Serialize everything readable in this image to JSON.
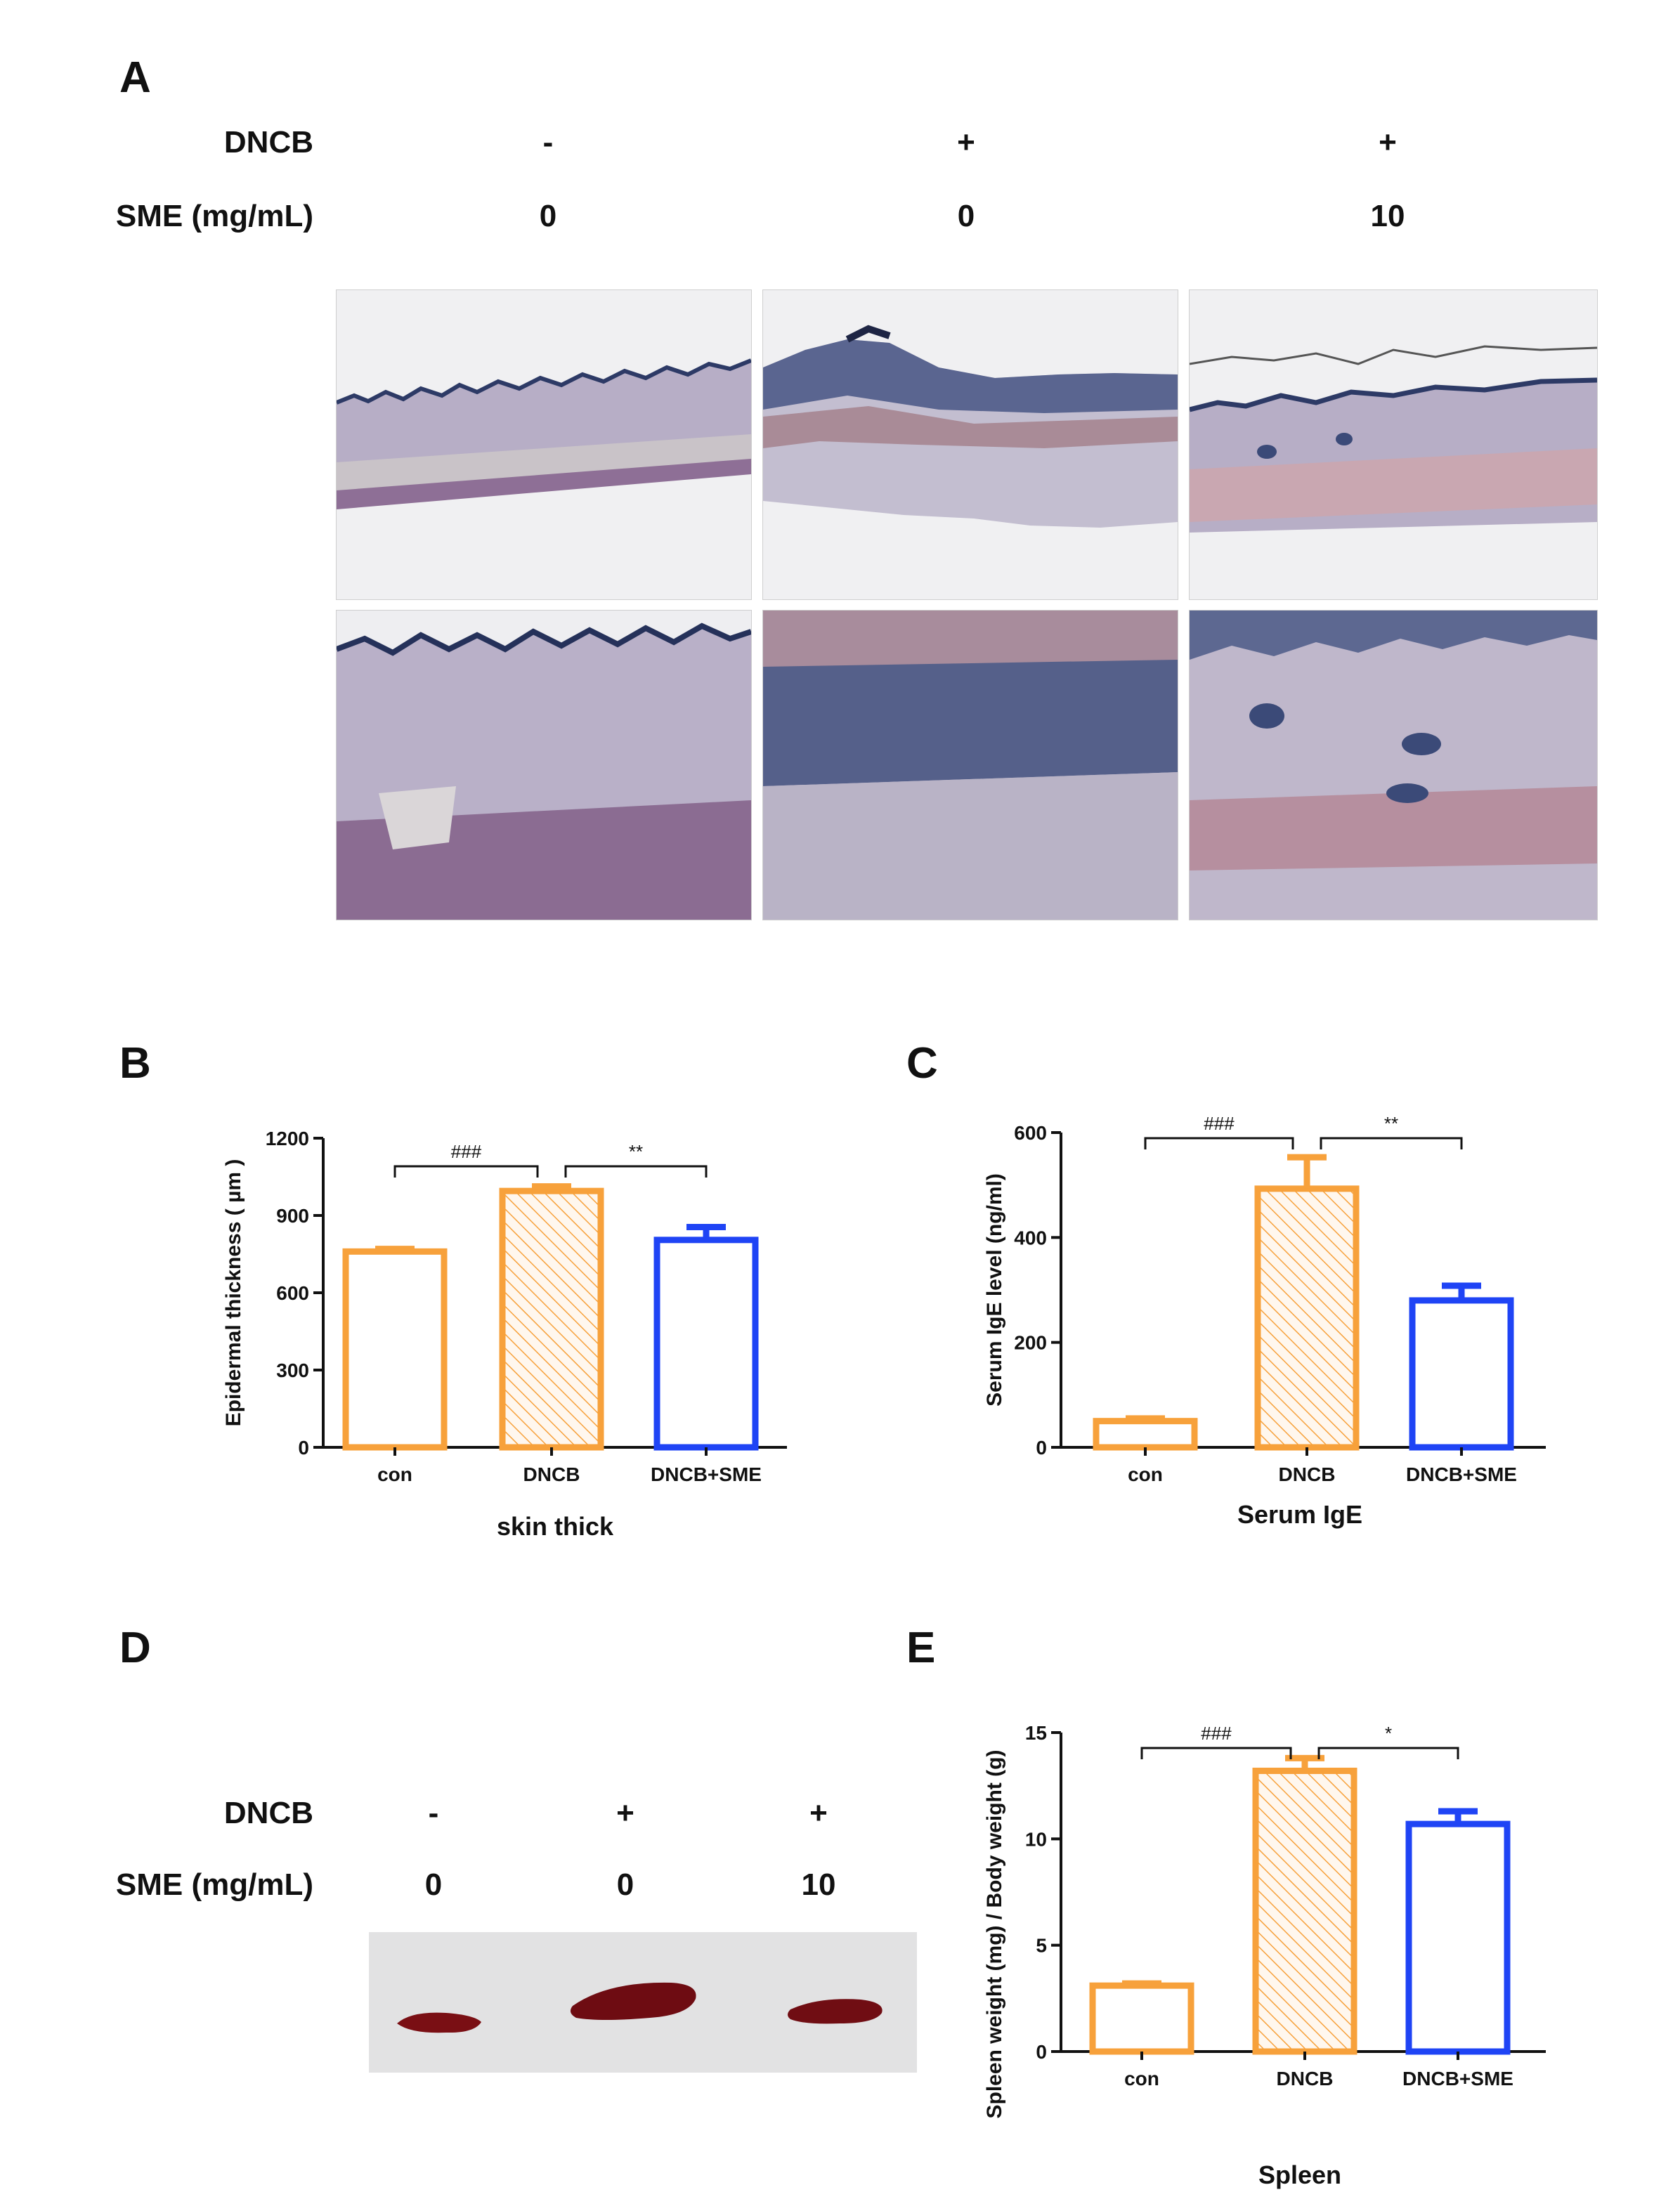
{
  "panels": {
    "A": {
      "letter": "A",
      "row_labels": {
        "dncb": "DNCB",
        "sme": "SME (mg/mL)"
      },
      "columns": [
        {
          "dncb": "-",
          "sme": "0"
        },
        {
          "dncb": "+",
          "sme": "0"
        },
        {
          "dncb": "+",
          "sme": "10"
        }
      ]
    },
    "B": {
      "letter": "B"
    },
    "C": {
      "letter": "C"
    },
    "D": {
      "letter": "D",
      "row_labels": {
        "dncb": "DNCB",
        "sme": "SME (mg/mL)"
      },
      "columns": [
        {
          "dncb": "-",
          "sme": "0"
        },
        {
          "dncb": "+",
          "sme": "0"
        },
        {
          "dncb": "+",
          "sme": "10"
        }
      ]
    },
    "E": {
      "letter": "E"
    }
  },
  "colors": {
    "orange": "#f7a13b",
    "blue": "#1f44f5",
    "spleen": "#7a0f14",
    "tissue": "#a99cb6",
    "stain": "#3b4a78"
  },
  "chart_data": [
    {
      "id": "B",
      "type": "bar",
      "categories": [
        "con",
        "DNCB",
        "DNCB+SME"
      ],
      "values": [
        760,
        995,
        805
      ],
      "errors": [
        10,
        18,
        50
      ],
      "xlabel": "skin thick",
      "ylabel": "Epidermal thickness ( µm )",
      "ylim": [
        0,
        1200
      ],
      "yticks": [
        0,
        300,
        600,
        900,
        1200
      ],
      "significance": [
        {
          "from": 0,
          "to": 1,
          "label": "###"
        },
        {
          "from": 1,
          "to": 2,
          "label": "**"
        }
      ]
    },
    {
      "id": "C",
      "type": "bar",
      "categories": [
        "con",
        "DNCB",
        "DNCB+SME"
      ],
      "values": [
        50,
        493,
        280
      ],
      "errors": [
        5,
        60,
        28
      ],
      "xlabel": "Serum IgE",
      "ylabel": "Serum IgE level (ng/ml)",
      "ylim": [
        0,
        600
      ],
      "yticks": [
        0,
        200,
        400,
        600
      ],
      "significance": [
        {
          "from": 0,
          "to": 1,
          "label": "###"
        },
        {
          "from": 1,
          "to": 2,
          "label": "**"
        }
      ]
    },
    {
      "id": "E",
      "type": "bar",
      "categories": [
        "con",
        "DNCB",
        "DNCB+SME"
      ],
      "values": [
        3.1,
        13.2,
        10.7
      ],
      "errors": [
        0.1,
        0.6,
        0.6
      ],
      "xlabel": "Spleen",
      "ylabel": "Spleen weight (mg) / Body weight (g)",
      "ylim": [
        0,
        15
      ],
      "yticks": [
        0,
        5,
        10,
        15
      ],
      "significance": [
        {
          "from": 0,
          "to": 1,
          "label": "###"
        },
        {
          "from": 1,
          "to": 2,
          "label": "*"
        }
      ]
    }
  ]
}
